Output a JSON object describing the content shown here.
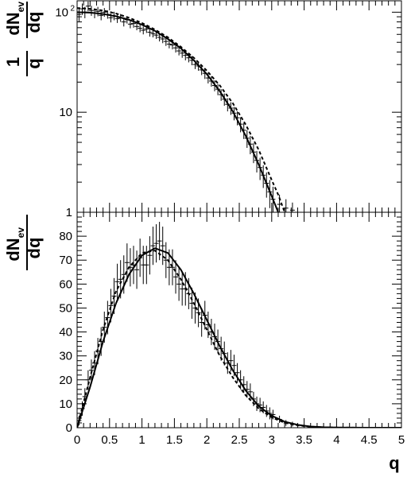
{
  "chart_data": [
    {
      "type": "scatter",
      "title": "",
      "xlabel": "",
      "ylabel": "1/q dN_ev/dq",
      "ylabel_parts": {
        "num_one": "1",
        "den_q": "q",
        "num_dN": "dN",
        "sub_ev": "ev",
        "den_dq": "dq"
      },
      "yscale": "log",
      "xlim": [
        0,
        5
      ],
      "ylim": [
        1,
        130
      ],
      "ytick_labels": [
        {
          "value": 1,
          "base": "1",
          "exp": ""
        },
        {
          "value": 10,
          "base": "10",
          "exp": ""
        },
        {
          "value": 100,
          "base": "10",
          "exp": "2"
        }
      ],
      "legend": "none",
      "grid": false,
      "series": [
        {
          "kind": "points_with_errors",
          "x": [
            0.03,
            0.08,
            0.12,
            0.17,
            0.22,
            0.27,
            0.32,
            0.37,
            0.42,
            0.47,
            0.52,
            0.57,
            0.62,
            0.67,
            0.72,
            0.77,
            0.82,
            0.87,
            0.92,
            0.97,
            1.02,
            1.07,
            1.12,
            1.17,
            1.22,
            1.27,
            1.32,
            1.37,
            1.42,
            1.47,
            1.52,
            1.57,
            1.62,
            1.67,
            1.72,
            1.77,
            1.82,
            1.87,
            1.92,
            1.97,
            2.02,
            2.07,
            2.12,
            2.17,
            2.22,
            2.27,
            2.32,
            2.37,
            2.42,
            2.47,
            2.52,
            2.57,
            2.62,
            2.67,
            2.72,
            2.77,
            2.82,
            2.87,
            2.92,
            2.97,
            3.02,
            3.12,
            3.22,
            3.32
          ],
          "y": [
            95,
            108,
            100,
            115,
            104,
            98,
            102,
            93,
            100,
            95,
            88,
            92,
            86,
            88,
            80,
            84,
            76,
            77,
            72,
            69,
            66,
            68,
            63,
            61,
            59,
            56,
            54,
            51,
            48,
            47,
            44,
            41,
            39,
            37,
            35,
            33,
            30,
            29,
            26.5,
            24.5,
            22,
            20.5,
            18.5,
            17,
            15,
            13.5,
            12,
            11,
            9.8,
            8.8,
            7.6,
            6.6,
            5.5,
            4.8,
            4.0,
            3.3,
            2.8,
            2.35,
            1.95,
            1.6,
            1.35,
            1.2,
            1.1,
            1.05
          ],
          "yerr": [
            14,
            14,
            13,
            13,
            12,
            11,
            11,
            10,
            10,
            9,
            9,
            9,
            8,
            8,
            8,
            7,
            7,
            7,
            6,
            6,
            6,
            6,
            6,
            5,
            5,
            5,
            5,
            5,
            4.5,
            4.5,
            4.5,
            4,
            4,
            4,
            3.5,
            3.5,
            3,
            3,
            3,
            3,
            2.6,
            2.5,
            2.3,
            2.2,
            2,
            1.9,
            1.8,
            1.6,
            1.5,
            1.4,
            1.3,
            1.2,
            1.1,
            1.0,
            0.9,
            0.8,
            0.7,
            0.6,
            0.55,
            0.5,
            0.45,
            0.3,
            0.25,
            0.2
          ]
        },
        {
          "kind": "line",
          "style": "solid",
          "x": [
            0,
            0.2,
            0.4,
            0.6,
            0.8,
            1.0,
            1.2,
            1.4,
            1.6,
            1.8,
            2.0,
            2.2,
            2.4,
            2.6,
            2.8,
            3.0,
            3.1,
            3.2
          ],
          "y": [
            100,
            99,
            96,
            91,
            84,
            75,
            65,
            54,
            43.5,
            33,
            24,
            16.2,
            10.2,
            5.8,
            3.0,
            1.45,
            1.0,
            0.65
          ]
        },
        {
          "kind": "line",
          "style": "dashed",
          "x": [
            0,
            0.2,
            0.4,
            0.6,
            0.8,
            1.0,
            1.2,
            1.4,
            1.6,
            1.8,
            2.0,
            2.2,
            2.4,
            2.6,
            2.8,
            3.0,
            3.1,
            3.2,
            3.3
          ],
          "y": [
            110,
            108,
            104,
            97,
            88,
            78,
            67,
            56,
            45,
            35,
            26,
            18.5,
            12.3,
            7.5,
            4.2,
            2.1,
            1.5,
            1.0,
            0.7
          ]
        }
      ]
    },
    {
      "type": "scatter",
      "title": "",
      "xlabel": "q",
      "ylabel": "dN_ev/dq",
      "ylabel_parts": {
        "num_dN": "dN",
        "sub_ev": "ev",
        "den_dq": "dq"
      },
      "yscale": "linear",
      "xlim": [
        0,
        5
      ],
      "ylim": [
        0,
        90
      ],
      "xticks": [
        0,
        0.5,
        1,
        1.5,
        2,
        2.5,
        3,
        3.5,
        4,
        4.5,
        5
      ],
      "xtick_labels": [
        "0",
        "0.5",
        "1",
        "1.5",
        "2",
        "2.5",
        "3",
        "3.5",
        "4",
        "4.5",
        "5"
      ],
      "yticks": [
        0,
        10,
        20,
        30,
        40,
        50,
        60,
        70,
        80
      ],
      "ytick_labels": [
        "0",
        "10",
        "20",
        "30",
        "40",
        "50",
        "60",
        "70",
        "80"
      ],
      "legend": "none",
      "grid": false,
      "series": [
        {
          "kind": "points_with_errors",
          "x": [
            0.03,
            0.08,
            0.12,
            0.17,
            0.22,
            0.27,
            0.32,
            0.37,
            0.42,
            0.47,
            0.52,
            0.57,
            0.62,
            0.67,
            0.72,
            0.77,
            0.82,
            0.87,
            0.92,
            0.97,
            1.02,
            1.07,
            1.12,
            1.17,
            1.22,
            1.27,
            1.32,
            1.37,
            1.42,
            1.47,
            1.52,
            1.57,
            1.62,
            1.67,
            1.72,
            1.77,
            1.82,
            1.87,
            1.92,
            1.97,
            2.02,
            2.07,
            2.12,
            2.17,
            2.22,
            2.27,
            2.32,
            2.37,
            2.42,
            2.47,
            2.52,
            2.57,
            2.62,
            2.67,
            2.72,
            2.77,
            2.82,
            2.87,
            2.92,
            2.97,
            3.02,
            3.12,
            3.22,
            3.32
          ],
          "y": [
            3,
            8,
            13,
            20,
            24,
            27,
            32,
            36,
            42,
            46,
            51,
            55,
            61,
            62,
            64,
            69,
            67,
            68,
            66,
            71,
            68,
            68,
            72,
            76,
            77,
            78,
            76,
            70,
            67,
            67,
            63,
            60,
            58,
            58,
            56,
            52,
            50,
            48,
            44,
            47,
            43,
            40,
            38,
            36,
            33,
            31,
            27,
            28,
            26,
            23,
            20,
            18,
            16,
            15,
            12,
            10,
            9.5,
            8.5,
            7,
            6,
            5.5,
            3.5,
            2,
            1.5
          ],
          "yerr": [
            2,
            3,
            3.5,
            4,
            4.5,
            5,
            5.5,
            6,
            6.5,
            7,
            7,
            7.5,
            7.5,
            8,
            8,
            8,
            8,
            8,
            8,
            8,
            8,
            8,
            8,
            8,
            8,
            8,
            8,
            7.5,
            7.5,
            7.5,
            7,
            7,
            7,
            7,
            6.5,
            6.5,
            6.5,
            6,
            6,
            6,
            5.5,
            5.5,
            5.5,
            5,
            5,
            5,
            4.5,
            4.5,
            4.5,
            4,
            4,
            3.5,
            3.5,
            3.5,
            3,
            3,
            3,
            2.5,
            2.5,
            2.5,
            2,
            1.5,
            1.2,
            1
          ]
        },
        {
          "kind": "line",
          "style": "solid",
          "x": [
            0,
            0.2,
            0.4,
            0.6,
            0.8,
            1.0,
            1.2,
            1.4,
            1.6,
            1.8,
            2.0,
            2.2,
            2.4,
            2.6,
            2.8,
            3.0,
            3.2,
            3.4,
            3.6,
            3.8,
            4.0,
            4.5,
            5.0
          ],
          "y": [
            0,
            17,
            36,
            52,
            64,
            72,
            75,
            73,
            66,
            56,
            45,
            34,
            24,
            15.5,
            9,
            5,
            2.5,
            1.2,
            0.5,
            0.2,
            0.1,
            0,
            0
          ]
        },
        {
          "kind": "line",
          "style": "dashed",
          "x": [
            0,
            0.2,
            0.4,
            0.6,
            0.8,
            1.0,
            1.2,
            1.4,
            1.6,
            1.8,
            2.0,
            2.2,
            2.4,
            2.6,
            2.8,
            3.0,
            3.2,
            3.4,
            3.6,
            3.8,
            4.0,
            4.5,
            5.0
          ],
          "y": [
            0,
            21,
            41,
            57,
            67,
            73,
            74,
            70,
            62,
            52,
            41,
            30,
            21,
            13.5,
            8,
            4.3,
            2.1,
            1.0,
            0.4,
            0.15,
            0.05,
            0,
            0
          ]
        }
      ]
    }
  ]
}
